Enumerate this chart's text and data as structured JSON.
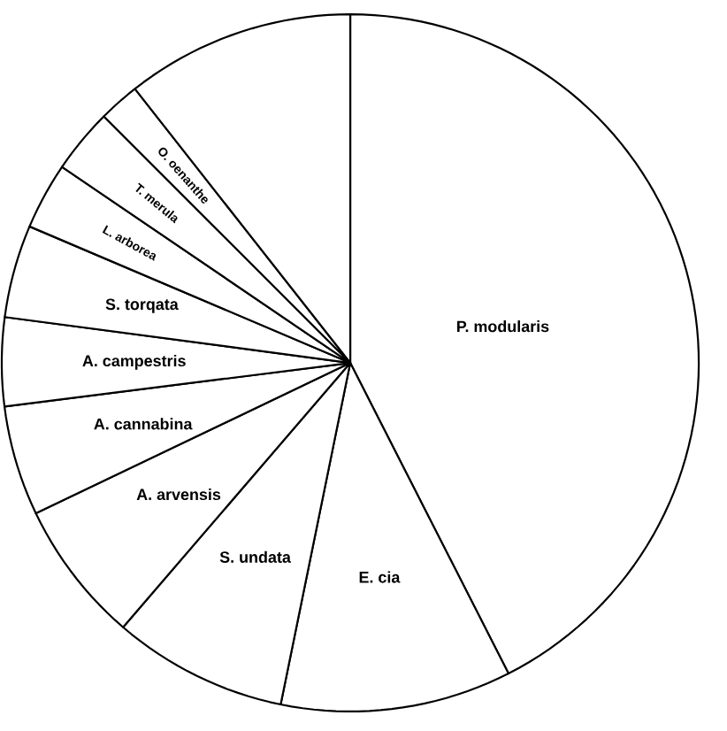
{
  "chart_data": {
    "type": "pie",
    "categories": [
      "P. modularis",
      "E. cia",
      "S. undata",
      "A. arvensis",
      "A. cannabina",
      "A. campestris",
      "S. torqata",
      "L. arborea",
      "T. merula",
      "O. oenanthe",
      null
    ],
    "values": [
      42.5,
      10.7,
      8.1,
      6.6,
      5.1,
      4.1,
      4.3,
      3.1,
      3.0,
      1.9,
      10.6
    ],
    "colors": [
      "#ffffff",
      "#ffffff",
      "#ffffff",
      "#ffffff",
      "#ffffff",
      "#ffffff",
      "#ffffff",
      "#ffffff",
      "#ffffff",
      "#ffffff",
      "#ffffff"
    ]
  }
}
